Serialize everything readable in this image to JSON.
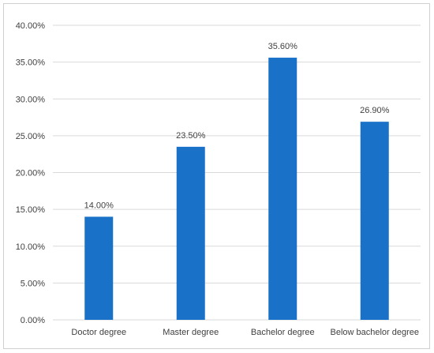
{
  "chart_data": {
    "type": "bar",
    "title": "",
    "xlabel": "",
    "ylabel": "",
    "categories": [
      "Doctor degree",
      "Master degree",
      "Bachelor degree",
      "Below bachelor degree"
    ],
    "values": [
      14.0,
      23.5,
      35.6,
      26.9
    ],
    "data_labels": [
      "14.00%",
      "23.50%",
      "35.60%",
      "26.90%"
    ],
    "ylim": [
      0,
      40
    ],
    "y_ticks": [
      0,
      5,
      10,
      15,
      20,
      25,
      30,
      35,
      40
    ],
    "y_tick_labels": [
      "0.00%",
      "5.00%",
      "10.00%",
      "15.00%",
      "20.00%",
      "25.00%",
      "30.00%",
      "35.00%",
      "40.00%"
    ],
    "grid": true,
    "legend": "none",
    "colors": {
      "bar": "#1a72c8",
      "grid": "#d9d9d9",
      "text": "#404040",
      "border": "#d0d0d0"
    }
  }
}
